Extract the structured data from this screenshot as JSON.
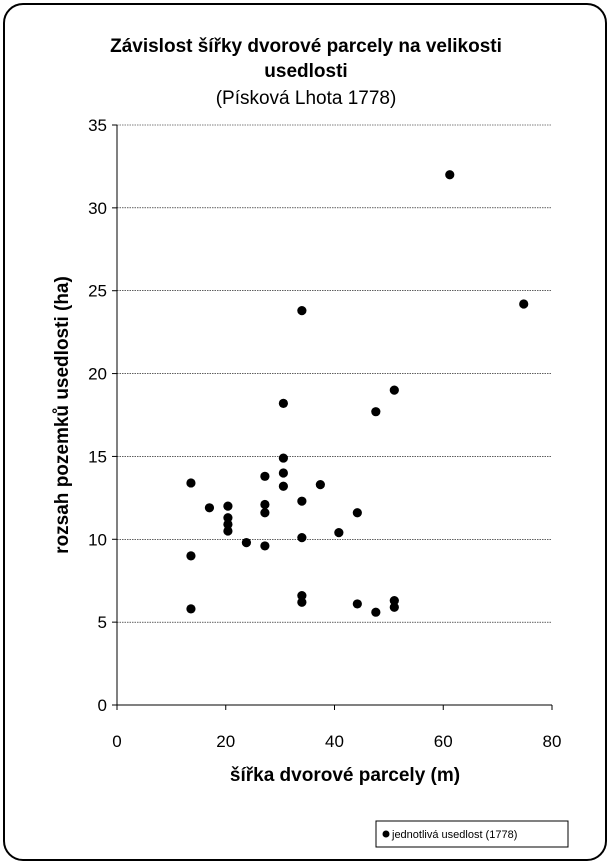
{
  "chart_data": {
    "type": "scatter",
    "title_line1": "Závislost šířky dvorové parcely na velikosti",
    "title_line2": "usedlosti",
    "subtitle": "(Písková Lhota 1778)",
    "xlabel": "šířka dvorové parcely (m)",
    "ylabel": "rozsah pozemků usedlosti (ha)",
    "xlim": [
      0,
      80
    ],
    "ylim": [
      0,
      35
    ],
    "x_ticks": [
      "0",
      "20",
      "40",
      "60",
      "80"
    ],
    "y_ticks": [
      "0",
      "5",
      "10",
      "15",
      "20",
      "25",
      "30",
      "35"
    ],
    "grid": "horizontal",
    "legend_position": "bottom-right",
    "series": [
      {
        "name": "jednotlivá usedlost (1778)",
        "color": "#000000",
        "points": [
          [
            13.6,
            13.4
          ],
          [
            13.6,
            9.0
          ],
          [
            13.6,
            5.8
          ],
          [
            17.0,
            11.9
          ],
          [
            20.4,
            12.0
          ],
          [
            20.4,
            11.3
          ],
          [
            20.4,
            10.9
          ],
          [
            20.4,
            10.5
          ],
          [
            23.8,
            9.8
          ],
          [
            27.2,
            13.8
          ],
          [
            27.2,
            12.1
          ],
          [
            27.2,
            11.6
          ],
          [
            27.2,
            9.6
          ],
          [
            30.6,
            18.2
          ],
          [
            30.6,
            14.9
          ],
          [
            30.6,
            14.0
          ],
          [
            30.6,
            13.2
          ],
          [
            34.0,
            23.8
          ],
          [
            34.0,
            12.3
          ],
          [
            34.0,
            10.1
          ],
          [
            34.0,
            6.6
          ],
          [
            34.0,
            6.2
          ],
          [
            37.4,
            13.3
          ],
          [
            40.8,
            10.4
          ],
          [
            44.2,
            11.6
          ],
          [
            44.2,
            6.1
          ],
          [
            47.6,
            17.7
          ],
          [
            47.6,
            5.6
          ],
          [
            51.0,
            19.0
          ],
          [
            51.0,
            6.3
          ],
          [
            51.0,
            5.9
          ],
          [
            61.2,
            32.0
          ],
          [
            74.8,
            24.2
          ]
        ]
      }
    ]
  }
}
